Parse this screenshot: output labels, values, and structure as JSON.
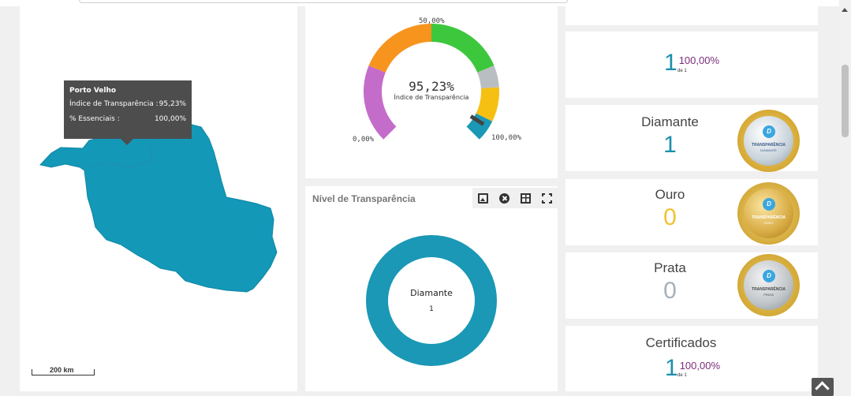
{
  "map": {
    "tooltip": {
      "title": "Porto Velho",
      "rows": [
        {
          "label": "Índice de Transparência :",
          "value": "95,23%"
        },
        {
          "label": "% Essenciais :",
          "value": "100,00%"
        }
      ]
    },
    "scale_label": "200 km",
    "region_color": "#1398b8"
  },
  "gauge": {
    "value": 95.23,
    "value_text": "95,23%",
    "label": "Índice de Transparência",
    "min_label": "0,00%",
    "mid_label": "50,00%",
    "max_label": "100,00%",
    "bands": [
      {
        "from": 0,
        "to": 25,
        "color": "#c46cc9"
      },
      {
        "from": 25,
        "to": 50,
        "color": "#f7941d"
      },
      {
        "from": 50,
        "to": 75,
        "color": "#3dc73d"
      },
      {
        "from": 75,
        "to": 82,
        "color": "#b9bec2"
      },
      {
        "from": 82,
        "to": 93,
        "color": "#f6c012"
      },
      {
        "from": 93,
        "to": 100,
        "color": "#1a98b5"
      }
    ]
  },
  "donut": {
    "title": "Nível de Transparência",
    "category": "Diamante",
    "value": "1",
    "color": "#1a98b5",
    "toolbar": [
      "image-icon",
      "close-icon",
      "table-icon",
      "fullscreen-icon"
    ]
  },
  "stats": {
    "total": {
      "big": "1",
      "percent": "100,00%",
      "de": "de 1"
    },
    "diamante": {
      "title": "Diamante",
      "count": "1",
      "color": "#1a8fad",
      "medal_title": "TRANSPARÊNCIA",
      "medal_sub": "DIAMANTE"
    },
    "ouro": {
      "title": "Ouro",
      "count": "0",
      "color": "#f2c230",
      "medal_title": "TRANSPARÊNCIA",
      "medal_sub": "OURO"
    },
    "prata": {
      "title": "Prata",
      "count": "0",
      "color": "#a7b0b7",
      "medal_title": "TRANSPARÊNCIA",
      "medal_sub": "PRATA"
    },
    "certificados": {
      "title": "Certificados",
      "big": "1",
      "percent": "100,00%",
      "de": "de 1"
    }
  }
}
